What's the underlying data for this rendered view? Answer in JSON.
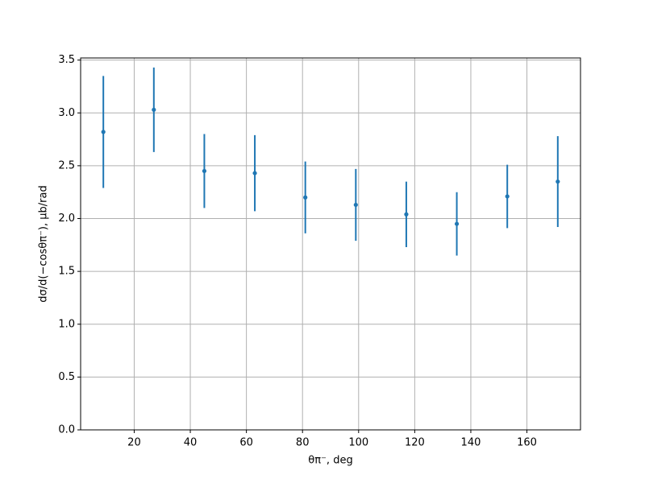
{
  "chart_data": {
    "type": "errorbar",
    "x_label": "θπ⁻, deg",
    "y_label": "dσ/d(−cosθπ⁻), μb/rad",
    "x": [
      9,
      27,
      45,
      63,
      81,
      99,
      117,
      135,
      153,
      171
    ],
    "values": [
      2.82,
      3.03,
      2.45,
      2.43,
      2.2,
      2.13,
      2.04,
      1.95,
      2.21,
      2.35
    ],
    "errors": [
      0.53,
      0.4,
      0.35,
      0.36,
      0.34,
      0.34,
      0.31,
      0.3,
      0.3,
      0.43
    ],
    "color": "#1f77b4",
    "xlim": [
      0.9,
      179.1
    ],
    "ylim": [
      0,
      3.52
    ],
    "xticks": [
      20,
      40,
      60,
      80,
      100,
      120,
      140,
      160
    ],
    "yticks": [
      {
        "value": 0,
        "label": "0.0"
      },
      {
        "value": 0.5,
        "label": "0.5"
      },
      {
        "value": 1,
        "label": "1.0"
      },
      {
        "value": 1.5,
        "label": "1.5"
      },
      {
        "value": 2,
        "label": "2.0"
      },
      {
        "value": 2.5,
        "label": "2.5"
      },
      {
        "value": 3,
        "label": "3.0"
      },
      {
        "value": 3.5,
        "label": "3.5"
      }
    ],
    "grid": true
  }
}
